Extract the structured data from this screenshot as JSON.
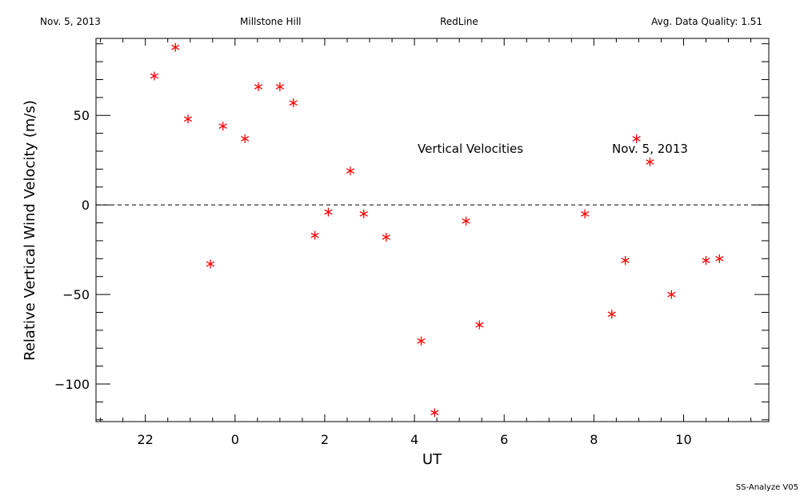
{
  "header": {
    "date": "Nov. 5, 2013",
    "site": "Millstone Hill",
    "line": "RedLine",
    "quality": "Avg. Data Quality: 1.51"
  },
  "footer": "SS-Analyze V05",
  "chart_data": {
    "type": "scatter",
    "xlabel": "UT",
    "ylabel": "Relative Vertical Wind Velocity (m/s)",
    "annotations": [
      "Vertical Velocities",
      "Nov. 5, 2013"
    ],
    "x_tick_labels": [
      "22",
      "0",
      "2",
      "4",
      "6",
      "8",
      "10"
    ],
    "x_tick_hours": [
      -2,
      0,
      2,
      4,
      6,
      8,
      10
    ],
    "y_tick_labels": [
      "50",
      "0",
      "−50",
      "−100"
    ],
    "y_tick_values": [
      50,
      0,
      -50,
      -100
    ],
    "xlim": [
      -3.1,
      11.9
    ],
    "ylim": [
      -121,
      93
    ],
    "zero_line": true,
    "marker_color": "#ff0000",
    "points": [
      {
        "ut": -1.8,
        "v": 72
      },
      {
        "ut": -1.33,
        "v": 88
      },
      {
        "ut": -1.05,
        "v": 48
      },
      {
        "ut": -0.55,
        "v": -33
      },
      {
        "ut": -0.27,
        "v": 44
      },
      {
        "ut": 0.22,
        "v": 37
      },
      {
        "ut": 0.52,
        "v": 66
      },
      {
        "ut": 1.0,
        "v": 66
      },
      {
        "ut": 1.3,
        "v": 57
      },
      {
        "ut": 1.78,
        "v": -17
      },
      {
        "ut": 2.08,
        "v": -4
      },
      {
        "ut": 2.57,
        "v": 19
      },
      {
        "ut": 2.87,
        "v": -5
      },
      {
        "ut": 3.37,
        "v": -18
      },
      {
        "ut": 4.15,
        "v": -76
      },
      {
        "ut": 4.45,
        "v": -116
      },
      {
        "ut": 5.15,
        "v": -9
      },
      {
        "ut": 5.45,
        "v": -67
      },
      {
        "ut": 7.8,
        "v": -5
      },
      {
        "ut": 8.4,
        "v": -61
      },
      {
        "ut": 8.7,
        "v": -31
      },
      {
        "ut": 8.95,
        "v": 37
      },
      {
        "ut": 9.25,
        "v": 24
      },
      {
        "ut": 9.73,
        "v": -50
      },
      {
        "ut": 10.5,
        "v": -31
      },
      {
        "ut": 10.8,
        "v": -30
      }
    ]
  }
}
